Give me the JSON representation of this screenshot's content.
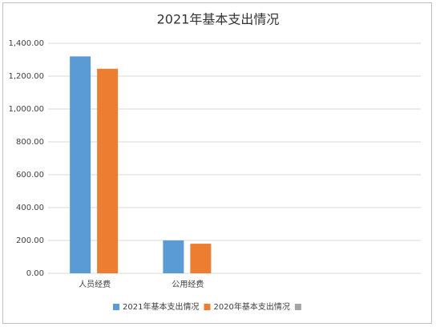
{
  "chart_data": {
    "type": "bar",
    "title": "2021年基本支出情况",
    "categories": [
      "人员经费",
      "公用经费",
      null,
      null
    ],
    "series": [
      {
        "name": "2021年基本支出情况",
        "color": "#5b9bd5",
        "values": [
          1320,
          200,
          null,
          null
        ]
      },
      {
        "name": "2020年基本支出情况",
        "color": "#ed7d31",
        "values": [
          1245,
          180,
          null,
          null
        ]
      },
      {
        "name": null,
        "color": "#a5a5a5",
        "values": [
          null,
          null,
          null,
          null
        ]
      }
    ],
    "ylim": [
      0,
      1400
    ],
    "yticks": [
      {
        "value": 0,
        "label": "0.00"
      },
      {
        "value": 200,
        "label": "200.00"
      },
      {
        "value": 400,
        "label": "400.00"
      },
      {
        "value": 600,
        "label": "600.00"
      },
      {
        "value": 800,
        "label": "800.00"
      },
      {
        "value": 1000,
        "label": "1,000.00"
      },
      {
        "value": 1200,
        "label": "1,200.00"
      },
      {
        "value": 1400,
        "label": "1,400.00"
      }
    ],
    "grid": true,
    "legend": "bottom"
  }
}
